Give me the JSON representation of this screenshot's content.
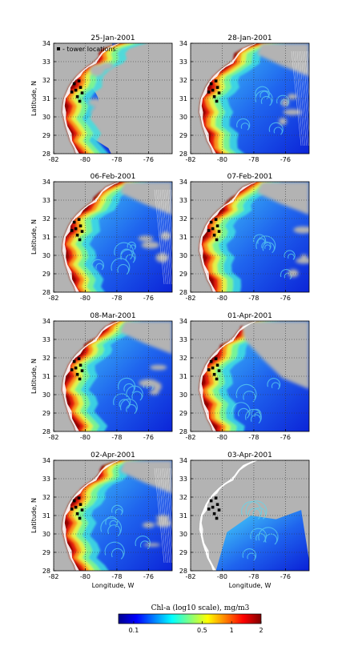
{
  "chart_data": {
    "type": "heatmap",
    "description_units": "Chl-a (log10 scale), mg/m3",
    "colors": {
      "land": "#b3b3b3",
      "coast": "#ffffff",
      "tower_marker": "#000000",
      "grid": "#333333"
    },
    "xaxis": {
      "label": "Longitude, W",
      "ticks": [
        -82,
        -80,
        -78,
        -76
      ],
      "range": [
        -82,
        -74.5
      ]
    },
    "yaxis": {
      "label": "Latitude, N",
      "ticks": [
        28,
        29,
        30,
        31,
        32,
        33,
        34
      ],
      "range": [
        28,
        34
      ]
    },
    "legend": {
      "marker": "■",
      "label": "- tower locations"
    },
    "panels": [
      {
        "title": "25-Jan-2001",
        "coverage": "partial-west"
      },
      {
        "title": "28-Jan-2001",
        "coverage": "full"
      },
      {
        "title": "06-Feb-2001",
        "coverage": "full"
      },
      {
        "title": "07-Feb-2001",
        "coverage": "full"
      },
      {
        "title": "08-Mar-2001",
        "coverage": "full"
      },
      {
        "title": "01-Apr-2001",
        "coverage": "mostly-cloud"
      },
      {
        "title": "02-Apr-2001",
        "coverage": "full"
      },
      {
        "title": "03-Apr-2001",
        "coverage": "offshore-only"
      }
    ],
    "towers": [
      {
        "lon": -80.4,
        "lat": 31.95
      },
      {
        "lon": -80.7,
        "lat": 31.8
      },
      {
        "lon": -80.3,
        "lat": 31.6
      },
      {
        "lon": -80.6,
        "lat": 31.45
      },
      {
        "lon": -80.85,
        "lat": 31.35
      },
      {
        "lon": -80.2,
        "lat": 31.3
      },
      {
        "lon": -80.5,
        "lat": 31.1
      },
      {
        "lon": -80.35,
        "lat": 30.85
      }
    ],
    "colorbar": {
      "title": "Chl-a (log10 scale), mg/m3",
      "ticks": [
        {
          "label": "0.1",
          "value": 0.1
        },
        {
          "label": "0.5",
          "value": 0.5
        },
        {
          "label": "1",
          "value": 1
        },
        {
          "label": "2",
          "value": 2
        }
      ],
      "range": [
        0.07,
        2
      ],
      "colormap": [
        "#00008f",
        "#0000ff",
        "#0080ff",
        "#00ffff",
        "#80ff80",
        "#ffff00",
        "#ff8000",
        "#ff0000",
        "#800000"
      ]
    }
  }
}
